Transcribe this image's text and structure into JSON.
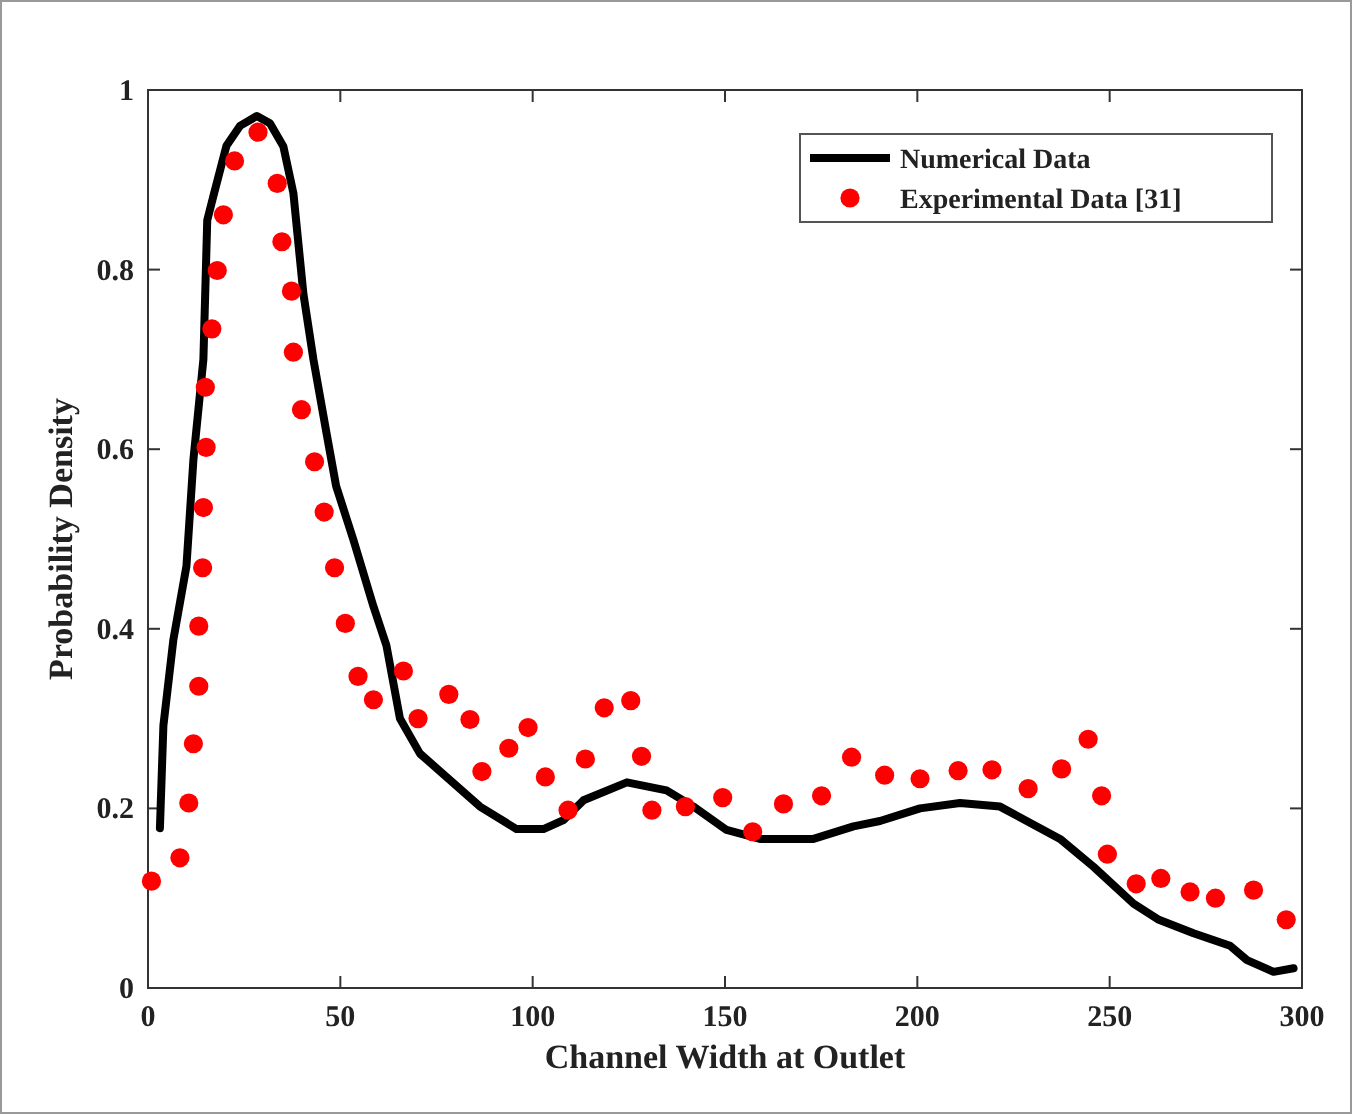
{
  "chart_data": {
    "type": "line",
    "xlabel": "Channel Width at Outlet",
    "ylabel": "Probability Density",
    "xlim": [
      0,
      300
    ],
    "ylim": [
      0,
      1
    ],
    "xticks": [
      0,
      50,
      100,
      150,
      200,
      250,
      300
    ],
    "yticks": [
      0,
      0.2,
      0.4,
      0.6,
      0.8,
      1
    ],
    "grid": false,
    "legend": "top right",
    "series": [
      {
        "name": "Numerical Data",
        "color": "#000000",
        "line_style": "solid",
        "marker": "none",
        "x": [
          3.1,
          4,
          6.6,
          10,
          11.8,
          14.4,
          15.4,
          17,
          20.4,
          23.9,
          28.3,
          31.7,
          35.2,
          37.8,
          40.4,
          43,
          46.4,
          48.9,
          53.4,
          58.6,
          62,
          65.5,
          70.7,
          77.6,
          86.3,
          95.8,
          102.8,
          108,
          113.2,
          124.5,
          134.8,
          141.8,
          150.4,
          159.1,
          173,
          183.4,
          190.3,
          200.7,
          211.1,
          221.5,
          237.1,
          245.8,
          256.2,
          262.8,
          271.8,
          281.3,
          285.7,
          292.6,
          297.8
        ],
        "values": [
          0.178,
          0.292,
          0.388,
          0.47,
          0.588,
          0.7,
          0.855,
          0.882,
          0.938,
          0.96,
          0.971,
          0.963,
          0.937,
          0.885,
          0.773,
          0.7,
          0.618,
          0.559,
          0.499,
          0.425,
          0.381,
          0.3,
          0.261,
          0.235,
          0.202,
          0.177,
          0.177,
          0.187,
          0.209,
          0.229,
          0.22,
          0.202,
          0.176,
          0.166,
          0.166,
          0.18,
          0.186,
          0.2,
          0.206,
          0.202,
          0.166,
          0.135,
          0.094,
          0.076,
          0.061,
          0.047,
          0.031,
          0.018,
          0.022
        ]
      },
      {
        "name": "Experimental Data [31]",
        "type": "scatter",
        "color": "#ff0000",
        "marker": "circle",
        "x": [
          0.9,
          8.3,
          10.6,
          11.8,
          13.2,
          13.2,
          14.2,
          14.4,
          15.1,
          14.9,
          16.6,
          18,
          19.6,
          22.5,
          28.6,
          33.6,
          34.8,
          37.3,
          37.8,
          39.9,
          43.3,
          45.8,
          48.5,
          51.3,
          54.6,
          58.6,
          66.4,
          70.2,
          78.2,
          83.7,
          86.8,
          93.8,
          98.8,
          103.3,
          109.2,
          113.7,
          118.6,
          125.5,
          128.3,
          131,
          139.7,
          149.4,
          157.2,
          165.2,
          175.1,
          182.9,
          191.5,
          200.7,
          210.6,
          219.4,
          228.8,
          237.5,
          244.4,
          247.9,
          249.4,
          256.9,
          263.3,
          270.9,
          277.5,
          287.4,
          295.9
        ],
        "values": [
          0.119,
          0.145,
          0.206,
          0.272,
          0.336,
          0.403,
          0.468,
          0.535,
          0.602,
          0.669,
          0.734,
          0.799,
          0.861,
          0.921,
          0.953,
          0.896,
          0.831,
          0.776,
          0.708,
          0.644,
          0.586,
          0.53,
          0.468,
          0.406,
          0.347,
          0.321,
          0.353,
          0.3,
          0.327,
          0.299,
          0.241,
          0.267,
          0.29,
          0.235,
          0.198,
          0.255,
          0.312,
          0.32,
          0.258,
          0.198,
          0.202,
          0.212,
          0.174,
          0.205,
          0.214,
          0.257,
          0.237,
          0.233,
          0.242,
          0.243,
          0.222,
          0.244,
          0.277,
          0.214,
          0.149,
          0.116,
          0.122,
          0.107,
          0.1,
          0.109,
          0.076
        ]
      }
    ]
  }
}
